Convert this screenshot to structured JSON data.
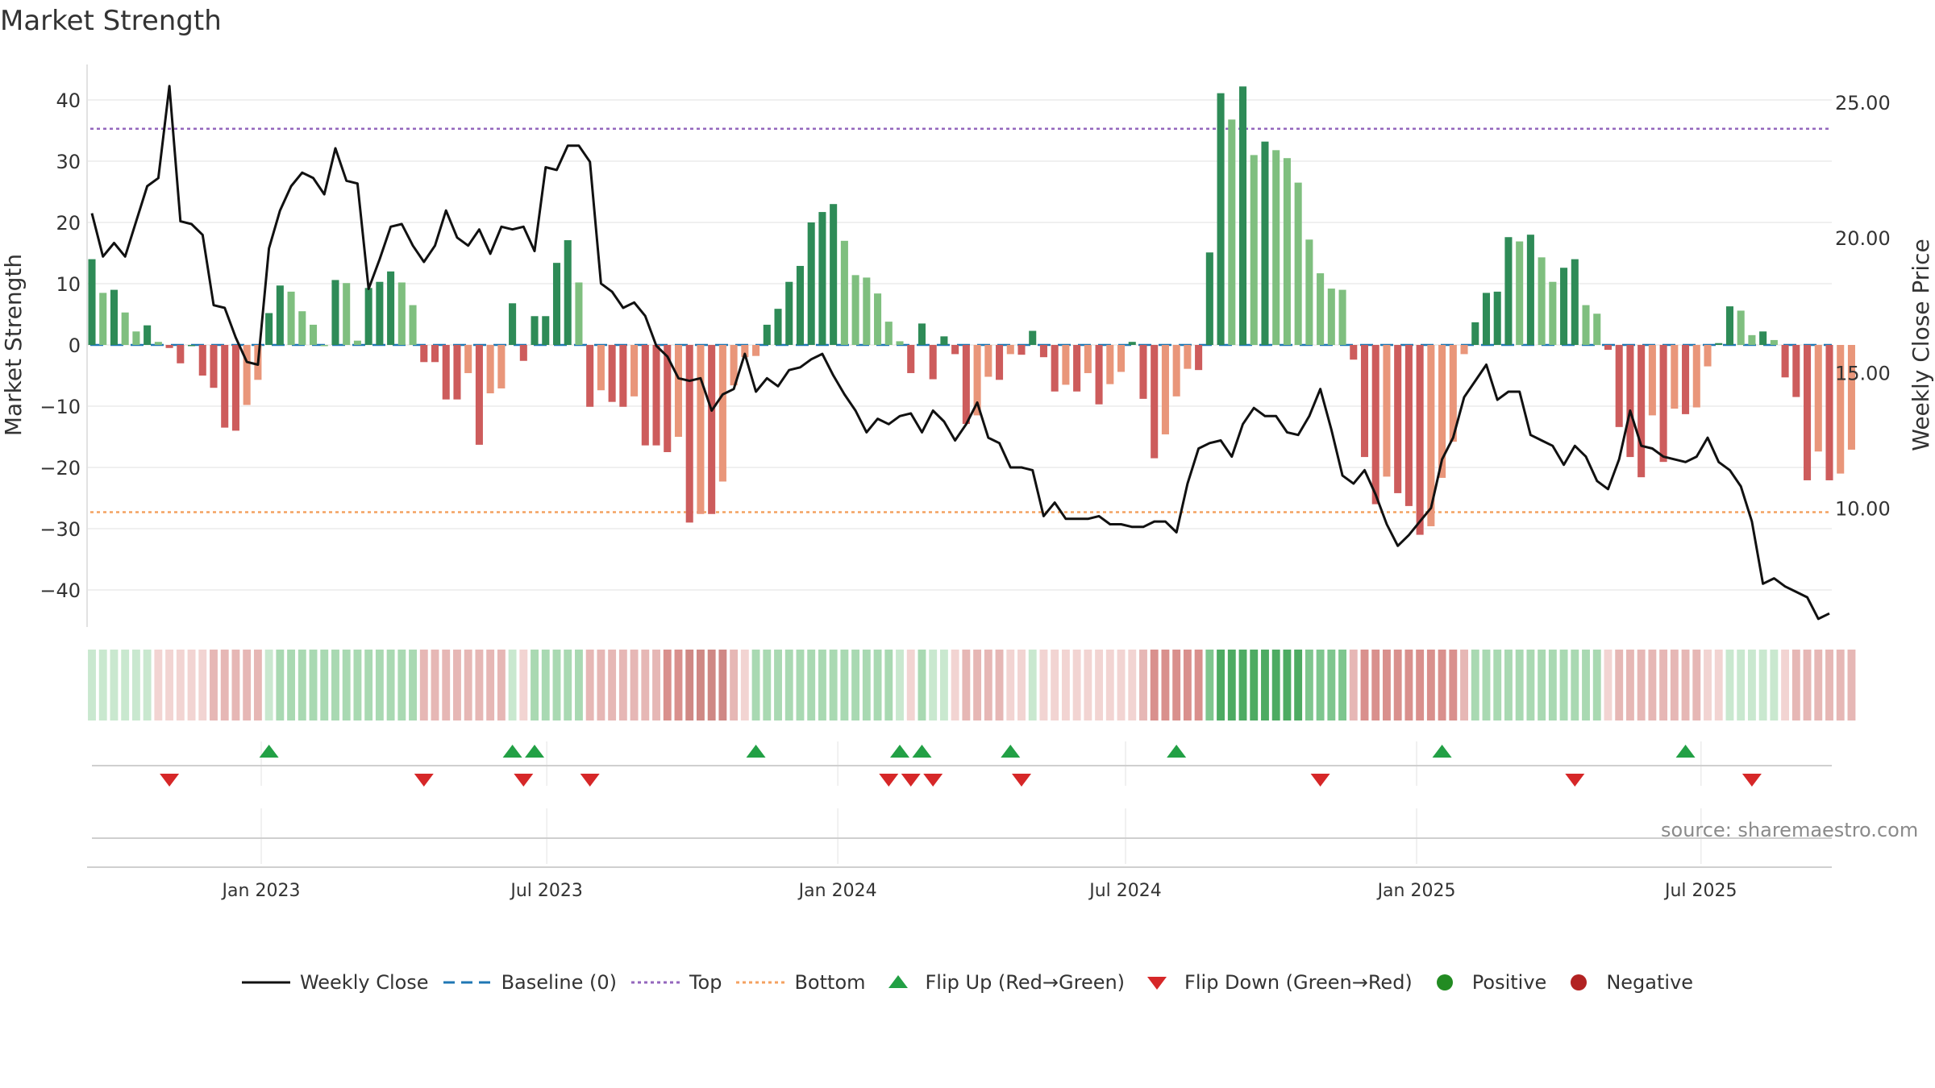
{
  "title": "Market Strength",
  "source": "source: sharemaestro.com",
  "colors": {
    "strong_positive": "#2e8b57",
    "weak_positive": "#7fbf7f",
    "strong_negative": "#cd5c5c",
    "weak_negative": "#e9967a",
    "line": "#111111",
    "baseline": "#1f77b4",
    "top": "#9467bd",
    "bottom": "#f4a261",
    "flip_up": "#22a045",
    "flip_down": "#d62728",
    "positive_dot": "#228b22",
    "negative_dot": "#b22222"
  },
  "legend": [
    {
      "key": "line",
      "label": "Weekly Close"
    },
    {
      "key": "baseline",
      "label": "Baseline (0)"
    },
    {
      "key": "top",
      "label": "Top"
    },
    {
      "key": "bottom",
      "label": "Bottom"
    },
    {
      "key": "flip_up",
      "label": "Flip Up (Red→Green)"
    },
    {
      "key": "flip_down",
      "label": "Flip Down (Green→Red)"
    },
    {
      "key": "positive",
      "label": "Positive"
    },
    {
      "key": "negative",
      "label": "Negative"
    }
  ],
  "chart_data": {
    "type": "bar",
    "title": "Market Strength",
    "ylabel": "Market Strength",
    "y2label": "Weekly Close Price",
    "ylim": [
      -46,
      46
    ],
    "y2lim": [
      5.6,
      26.4
    ],
    "yticks": [
      40,
      30,
      20,
      10,
      0,
      -10,
      -20,
      -30,
      -40
    ],
    "yticklabels": [
      "40",
      "30",
      "20",
      "10",
      "0",
      "−10",
      "−20",
      "−30",
      "−40"
    ],
    "y2ticks": [
      25,
      20,
      15,
      10
    ],
    "y2ticklabels": [
      "25.00",
      "20.00",
      "15.00",
      "10.00"
    ],
    "x_start": "2022-10-03",
    "weeks": 158,
    "xticks": [
      {
        "week": 15.3,
        "label": "Jan 2023"
      },
      {
        "week": 41.1,
        "label": "Jul 2023"
      },
      {
        "week": 67.4,
        "label": "Jan 2024"
      },
      {
        "week": 93.4,
        "label": "Jul 2024"
      },
      {
        "week": 119.7,
        "label": "Jan 2025"
      },
      {
        "week": 145.4,
        "label": "Jul 2025"
      }
    ],
    "top_line": 35.3,
    "bottom_line": -27.3,
    "baseline": 0,
    "strength": [
      14,
      8.5,
      9,
      5.3,
      2.2,
      3.2,
      0.5,
      -0.5,
      -3,
      0,
      -5,
      -7,
      -13.5,
      -14,
      -9.8,
      -5.7,
      5.2,
      9.7,
      8.7,
      5.5,
      3.3,
      0,
      10.6,
      10.1,
      0.7,
      9.3,
      10.3,
      12,
      10.2,
      6.5,
      -2.8,
      -2.8,
      -8.9,
      -8.9,
      -4.6,
      -16.3,
      -7.9,
      -7.1,
      6.8,
      -2.6,
      4.7,
      4.7,
      13.4,
      17.1,
      10.2,
      -10.1,
      -7.4,
      -9.3,
      -10.1,
      -8.4,
      -16.4,
      -16.4,
      -17.5,
      -15,
      -29,
      -27.6,
      -27.6,
      -22.3,
      -6.6,
      -2,
      -1.8,
      3.3,
      5.9,
      10.3,
      12.9,
      20,
      21.7,
      23,
      17,
      11.4,
      11,
      8.4,
      3.8,
      0.6,
      -4.6,
      3.5,
      -5.6,
      1.4,
      -1.5,
      -12.9,
      -11.5,
      -5.2,
      -5.7,
      -1.5,
      -1.6,
      2.3,
      -2,
      -7.6,
      -6.5,
      -7.6,
      -4.6,
      -9.7,
      -6.4,
      -4.4,
      0.5,
      -8.8,
      -18.5,
      -14.6,
      -8.4,
      -3.9,
      -4.1,
      15.1,
      41.1,
      36.8,
      42.2,
      31,
      33.2,
      31.8,
      30.5,
      26.5,
      17.2,
      11.7,
      9.2,
      9,
      -2.4,
      -18.3,
      -26,
      -21.5,
      -24.2,
      -26.3,
      -31,
      -29.6,
      -21.7,
      -15.8,
      -1.5,
      3.7,
      8.5,
      8.7,
      17.6,
      16.9,
      18,
      14.3,
      10.3,
      12.6,
      14,
      6.5,
      5.1,
      -0.8,
      -13.4,
      -18.3,
      -21.6,
      -11.5,
      -19.1,
      -10.4,
      -11.3,
      -10.2,
      -3.5,
      0.3,
      6.3,
      5.6,
      1.6,
      2.2,
      0.8,
      -5.3,
      -8.5,
      -22.1,
      -17.4,
      -22.1,
      -21,
      -17.1
    ],
    "weekly_close": [
      20.9,
      19.3,
      19.8,
      19.3,
      20.6,
      21.9,
      22.2,
      25.6,
      20.6,
      20.5,
      20.1,
      17.5,
      17.4,
      16.3,
      15.4,
      15.3,
      19.6,
      21,
      21.9,
      22.4,
      22.2,
      21.6,
      23.3,
      22.1,
      22,
      18.1,
      19.2,
      20.4,
      20.5,
      19.7,
      19.1,
      19.7,
      21,
      20,
      19.7,
      20.3,
      19.4,
      20.4,
      20.3,
      20.4,
      19.5,
      22.6,
      22.5,
      23.4,
      23.4,
      22.8,
      18.3,
      18,
      17.4,
      17.6,
      17.1,
      16,
      15.6,
      14.8,
      14.7,
      14.8,
      13.6,
      14.2,
      14.4,
      15.7,
      14.3,
      14.8,
      14.5,
      15.1,
      15.2,
      15.5,
      15.7,
      14.9,
      14.2,
      13.6,
      12.8,
      13.3,
      13.1,
      13.4,
      13.5,
      12.8,
      13.6,
      13.2,
      12.5,
      13.1,
      13.9,
      12.6,
      12.4,
      11.5,
      11.5,
      11.4,
      9.7,
      10.2,
      9.6,
      9.6,
      9.6,
      9.7,
      9.4,
      9.4,
      9.3,
      9.3,
      9.5,
      9.5,
      9.1,
      10.9,
      12.2,
      12.4,
      12.5,
      11.9,
      13.1,
      13.7,
      13.4,
      13.4,
      12.8,
      12.7,
      13.4,
      14.4,
      12.9,
      11.2,
      10.9,
      11.4,
      10.5,
      9.4,
      8.6,
      9,
      9.5,
      10,
      11.8,
      12.6,
      14.1,
      14.7,
      15.3,
      14,
      14.3,
      14.3,
      12.7,
      12.5,
      12.3,
      11.6,
      12.3,
      11.9,
      11,
      10.7,
      11.8,
      13.6,
      12.3,
      12.2,
      11.9,
      11.8,
      11.7,
      11.9,
      12.6,
      11.7,
      11.4,
      10.8,
      9.5,
      7.2,
      7.4,
      7.1,
      6.9,
      6.7,
      5.9,
      6.1
    ],
    "flip_up_weeks": [
      16,
      38,
      40,
      60,
      73,
      75,
      83,
      98,
      122,
      144
    ],
    "flip_down_weeks": [
      7,
      30,
      39,
      45,
      72,
      74,
      76,
      84,
      111,
      134,
      150
    ],
    "regime_strip": [
      1,
      1,
      1,
      1,
      1,
      1,
      -1,
      -1,
      -1,
      -1,
      -1,
      -2,
      -2,
      -2,
      -2,
      -2,
      1,
      2,
      2,
      2,
      2,
      2,
      2,
      2,
      2,
      2,
      2,
      2,
      2,
      2,
      -2,
      -2,
      -2,
      -2,
      -2,
      -2,
      -2,
      -2,
      1,
      -1,
      2,
      2,
      2,
      2,
      2,
      -2,
      -2,
      -2,
      -2,
      -2,
      -2,
      -2,
      -3,
      -3,
      -4,
      -4,
      -4,
      -4,
      -2,
      -1,
      2,
      2,
      2,
      2,
      2,
      2,
      2,
      2,
      2,
      2,
      2,
      2,
      2,
      1,
      -1,
      2,
      1,
      1,
      -1,
      -2,
      -2,
      -2,
      -2,
      -1,
      -1,
      1,
      -1,
      -1,
      -1,
      -1,
      -1,
      -1,
      -1,
      -1,
      -1,
      -2,
      -3,
      -3,
      -3,
      -3,
      -3,
      3,
      4,
      4,
      4,
      4,
      4,
      4,
      4,
      4,
      3,
      3,
      3,
      3,
      -2,
      -3,
      -3,
      -3,
      -3,
      -3,
      -3,
      -3,
      -3,
      -3,
      -2,
      2,
      2,
      2,
      2,
      2,
      2,
      2,
      2,
      2,
      2,
      2,
      2,
      -1,
      -2,
      -2,
      -2,
      -2,
      -2,
      -2,
      -2,
      -2,
      -1,
      -1,
      1,
      1,
      1,
      1,
      1,
      -1,
      -2,
      -2,
      -2,
      -2,
      -2,
      -2
    ]
  }
}
